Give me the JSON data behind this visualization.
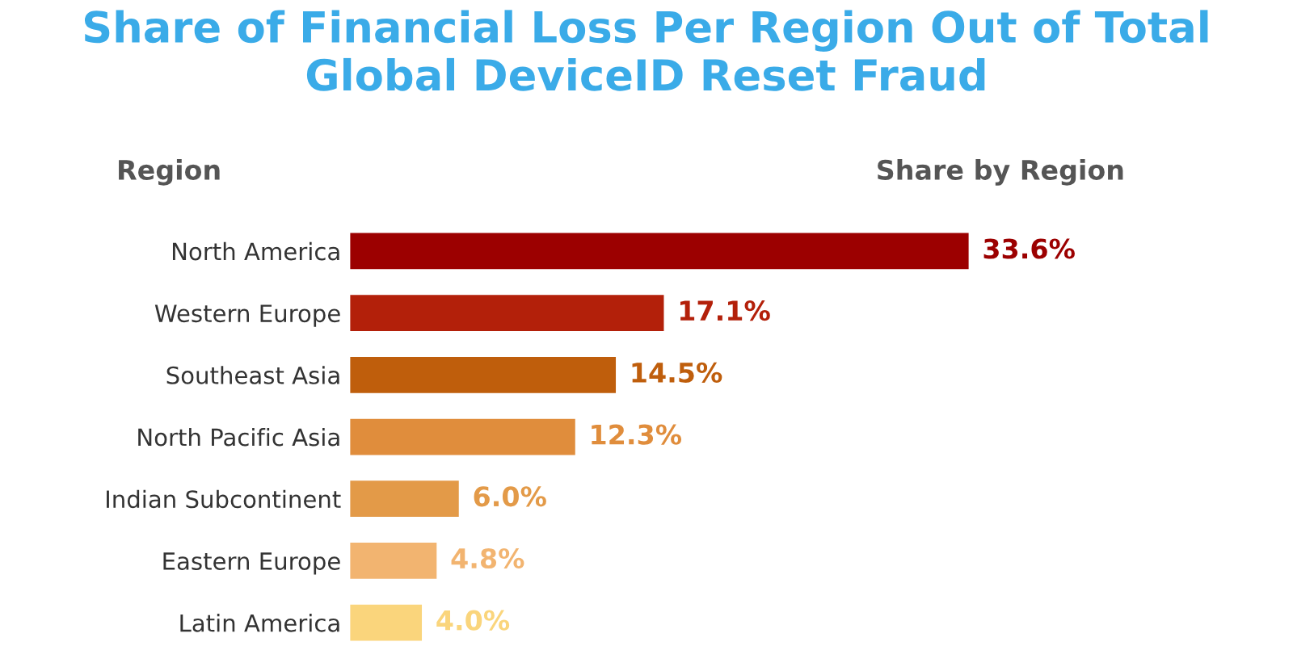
{
  "chart_data": {
    "type": "bar",
    "orientation": "horizontal",
    "title": "Share of Financial Loss Per Region Out of Total Global DeviceID Reset Fraud",
    "categories": [
      "North America",
      "Western Europe",
      "Southeast Asia",
      "North Pacific Asia",
      "Indian Subcontinent",
      "Eastern Europe",
      "Latin America"
    ],
    "values": [
      33.6,
      17.1,
      14.5,
      12.3,
      6.0,
      4.8,
      4.0
    ],
    "value_labels": [
      "33.6%",
      "17.1%",
      "14.5%",
      "12.3%",
      "6.0%",
      "4.8%",
      "4.0%"
    ],
    "colors": [
      "#9c0000",
      "#b3200a",
      "#bf5e0c",
      "#e08d3c",
      "#e39a48",
      "#f2b470",
      "#fad57c"
    ],
    "annotations": [
      "Region",
      "Share by Region"
    ],
    "tick_labels": "y"
  }
}
